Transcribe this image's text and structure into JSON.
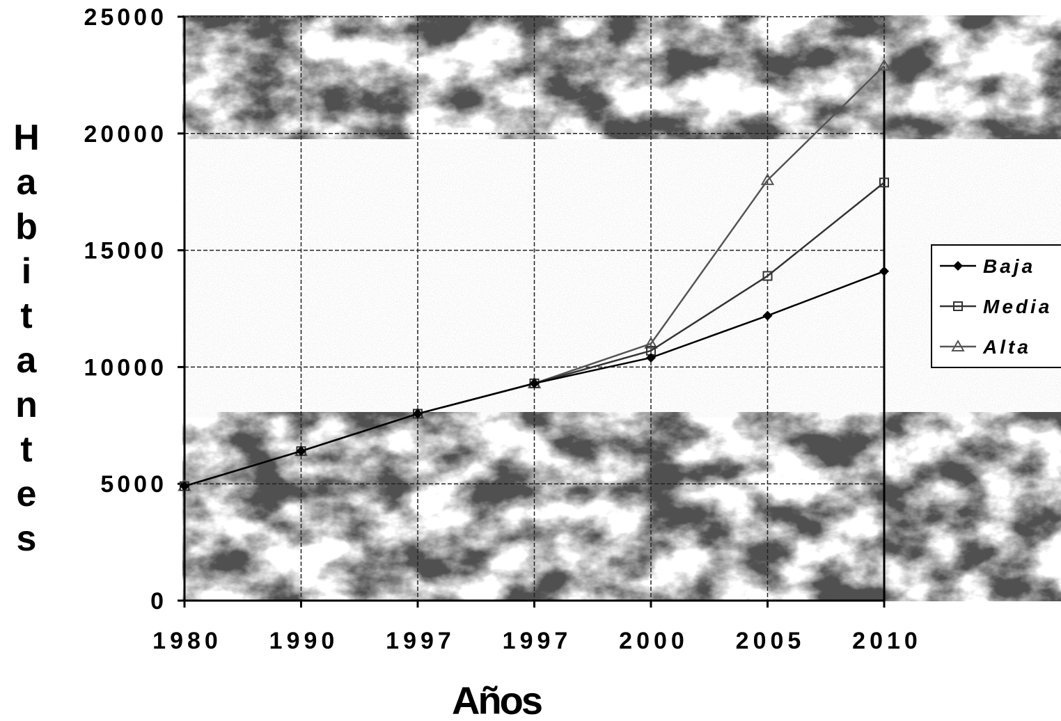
{
  "chart_data": {
    "type": "line",
    "title": "",
    "xlabel": "Años",
    "ylabel": "Habitantes",
    "categories": [
      "1980",
      "1990",
      "1997",
      "1997",
      "2000",
      "2005",
      "2010"
    ],
    "ylim": [
      0,
      25000
    ],
    "yticks": [
      "0",
      "5000",
      "10000",
      "15000",
      "20000",
      "25000"
    ],
    "grid": true,
    "legend_position": "right",
    "series": [
      {
        "name": "Baja",
        "values": [
          4900,
          6400,
          8000,
          9300,
          10400,
          12200,
          14100
        ],
        "color": "#000000",
        "marker": "diamond"
      },
      {
        "name": "Media",
        "values": [
          4900,
          6400,
          8000,
          9300,
          10700,
          13900,
          17900
        ],
        "color": "#333333",
        "marker": "square"
      },
      {
        "name": "Alta",
        "values": [
          4900,
          6400,
          8000,
          9300,
          11000,
          18000,
          22900
        ],
        "color": "#555555",
        "marker": "triangle"
      }
    ],
    "background_image": "cloud-photo"
  }
}
